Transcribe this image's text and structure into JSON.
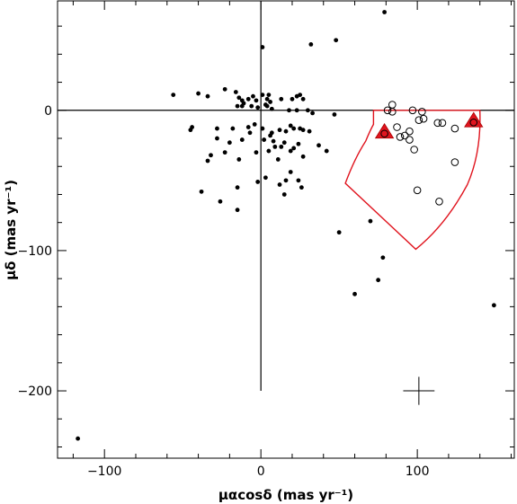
{
  "chart_data": {
    "type": "scatter",
    "title": "",
    "xlabel": "μαcosδ  (mas yr⁻¹)",
    "ylabel": "μδ  (mas yr⁻¹)",
    "xlim": [
      -130,
      162
    ],
    "ylim": [
      -248,
      78
    ],
    "x_ticks": [
      {
        "value": -100,
        "label": "−100"
      },
      {
        "value": 0,
        "label": "0"
      },
      {
        "value": 100,
        "label": "100"
      }
    ],
    "y_ticks": [
      {
        "value": 0,
        "label": "0"
      },
      {
        "value": -100,
        "label": "−100"
      },
      {
        "value": -200,
        "label": "−200"
      }
    ],
    "grid": false,
    "reference_lines": {
      "x_zero_line_ymin": -200,
      "y_zero_line": 0
    },
    "series": [
      {
        "marker": "filled-circle",
        "color": "#000000",
        "points": [
          [
            79,
            70
          ],
          [
            48,
            50
          ],
          [
            32,
            47
          ],
          [
            1,
            45
          ],
          [
            -56,
            11
          ],
          [
            -40,
            12
          ],
          [
            -34,
            10
          ],
          [
            -23,
            15
          ],
          [
            -16,
            13
          ],
          [
            -14,
            9
          ],
          [
            -12,
            7
          ],
          [
            -12,
            3
          ],
          [
            -8,
            8
          ],
          [
            -5,
            10
          ],
          [
            -3,
            7
          ],
          [
            1,
            11
          ],
          [
            5,
            11
          ],
          [
            4,
            8
          ],
          [
            6,
            6
          ],
          [
            4,
            3
          ],
          [
            13,
            8
          ],
          [
            20,
            8
          ],
          [
            23,
            10
          ],
          [
            25,
            11
          ],
          [
            27,
            8
          ],
          [
            -15,
            3
          ],
          [
            -11,
            5
          ],
          [
            -6,
            3
          ],
          [
            -2,
            2
          ],
          [
            3,
            4
          ],
          [
            7,
            1
          ],
          [
            18,
            0
          ],
          [
            23,
            0
          ],
          [
            30,
            0
          ],
          [
            33,
            -2
          ],
          [
            47,
            -3
          ],
          [
            -44,
            -12
          ],
          [
            -45,
            -14
          ],
          [
            -28,
            -13
          ],
          [
            -18,
            -13
          ],
          [
            -8,
            -12
          ],
          [
            -4,
            -10
          ],
          [
            1,
            -13
          ],
          [
            7,
            -16
          ],
          [
            12,
            -14
          ],
          [
            16,
            -15
          ],
          [
            19,
            -11
          ],
          [
            21,
            -13
          ],
          [
            25,
            -13
          ],
          [
            27,
            -14
          ],
          [
            31,
            -15
          ],
          [
            -28,
            -20
          ],
          [
            -20,
            -23
          ],
          [
            -12,
            -21
          ],
          [
            -7,
            -16
          ],
          [
            2,
            -21
          ],
          [
            6,
            -18
          ],
          [
            8,
            -22
          ],
          [
            13,
            -26
          ],
          [
            15,
            -23
          ],
          [
            19,
            -29
          ],
          [
            24,
            -24
          ],
          [
            -32,
            -32
          ],
          [
            -34,
            -36
          ],
          [
            -23,
            -30
          ],
          [
            -14,
            -35
          ],
          [
            -3,
            -30
          ],
          [
            9,
            -26
          ],
          [
            11,
            -35
          ],
          [
            5,
            -29
          ],
          [
            21,
            -27
          ],
          [
            27,
            -33
          ],
          [
            37,
            -25
          ],
          [
            42,
            -29
          ],
          [
            -38,
            -58
          ],
          [
            -26,
            -65
          ],
          [
            -15,
            -55
          ],
          [
            -15,
            -71
          ],
          [
            -2,
            -51
          ],
          [
            3,
            -48
          ],
          [
            12,
            -53
          ],
          [
            16,
            -50
          ],
          [
            19,
            -44
          ],
          [
            15,
            -60
          ],
          [
            24,
            -50
          ],
          [
            26,
            -55
          ],
          [
            50,
            -87
          ],
          [
            70,
            -79
          ],
          [
            78,
            -105
          ],
          [
            75,
            -121
          ],
          [
            60,
            -131
          ],
          [
            149,
            -139
          ],
          [
            -117,
            -234
          ]
        ]
      },
      {
        "marker": "open-circle",
        "color": "#000000",
        "points": [
          [
            84,
            4
          ],
          [
            81,
            0
          ],
          [
            84,
            -1
          ],
          [
            97,
            0
          ],
          [
            103,
            -1
          ],
          [
            101,
            -7
          ],
          [
            104,
            -6
          ],
          [
            113,
            -9
          ],
          [
            116,
            -9
          ],
          [
            79,
            -17
          ],
          [
            87,
            -12
          ],
          [
            89,
            -19
          ],
          [
            92,
            -18
          ],
          [
            95,
            -15
          ],
          [
            95,
            -21
          ],
          [
            98,
            -28
          ],
          [
            124,
            -13
          ],
          [
            124,
            -37
          ],
          [
            100,
            -57
          ],
          [
            114,
            -65
          ]
        ]
      },
      {
        "marker": "filled-triangle-with-circle",
        "color": "#e0141e",
        "points": [
          [
            79,
            -16
          ],
          [
            136,
            -8
          ]
        ]
      }
    ],
    "region": {
      "shape": "red outline (annular sector)",
      "color": "#e0141e",
      "vertices": [
        [
          72,
          0
        ],
        [
          140,
          0
        ],
        [
          132,
          -53
        ],
        [
          99,
          -99
        ],
        [
          54,
          -52
        ],
        [
          67,
          -22
        ],
        [
          72,
          -10
        ]
      ]
    },
    "error_bar": {
      "x": 101,
      "y": -200,
      "x_err": 10,
      "y_err": 10
    }
  }
}
